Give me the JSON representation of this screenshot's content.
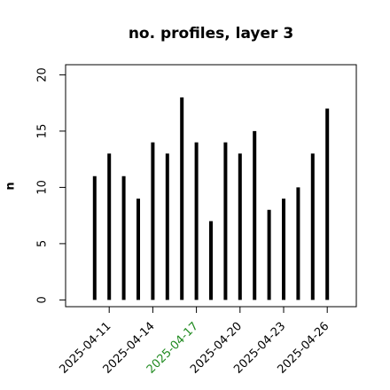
{
  "chart_data": {
    "type": "histogram-lines",
    "title": "no. profiles, layer 3",
    "ylabel": "n",
    "x": [
      "2025-04-10",
      "2025-04-11",
      "2025-04-12",
      "2025-04-13",
      "2025-04-14",
      "2025-04-15",
      "2025-04-16",
      "2025-04-17",
      "2025-04-18",
      "2025-04-19",
      "2025-04-20",
      "2025-04-21",
      "2025-04-22",
      "2025-04-23",
      "2025-04-24",
      "2025-04-25",
      "2025-04-26"
    ],
    "values": [
      11,
      13,
      11,
      9,
      14,
      13,
      18,
      14,
      7,
      14,
      13,
      15,
      8,
      9,
      10,
      13,
      17
    ],
    "color": "#000000",
    "xlim": [
      "2025-04-08",
      "2025-04-28"
    ],
    "xticks": [
      "2025-04-11",
      "2025-04-14",
      "2025-04-17",
      "2025-04-20",
      "2025-04-23",
      "2025-04-26"
    ],
    "xtick_colors": [
      "#000000",
      "#000000",
      "#228b22",
      "#000000",
      "#000000",
      "#000000"
    ],
    "ylim": [
      -0.6,
      20.9
    ],
    "yticks": [
      0,
      5,
      10,
      15,
      20
    ]
  }
}
